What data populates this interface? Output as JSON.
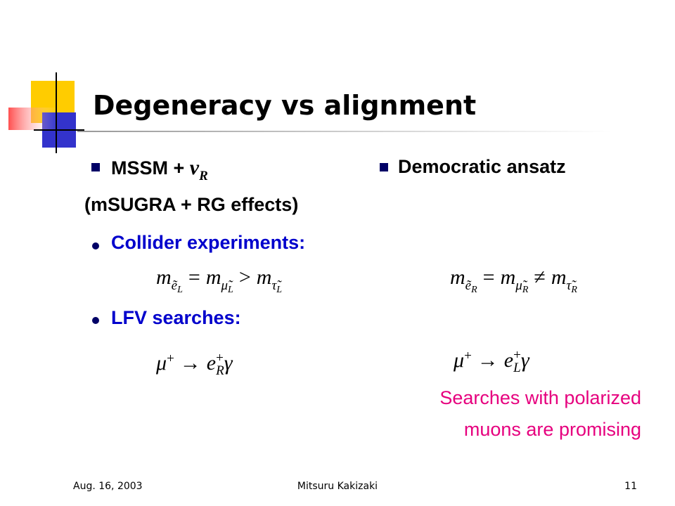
{
  "title": "Degeneracy vs alignment",
  "left": {
    "bullet": {
      "text": "MSSM +",
      "math": [
        {
          "base": "ν",
          "sub": "R"
        }
      ]
    },
    "note": "(mSUGRA + RG effects)",
    "item1": "Collider experiments:",
    "formula1": [
      {
        "base": "m",
        "sub": "ẽ",
        "subsub": "L"
      },
      {
        "op": "="
      },
      {
        "base": "m",
        "sub": "μ̃",
        "subsub": "L"
      },
      {
        "op": ">"
      },
      {
        "base": "m",
        "sub": "τ̃",
        "subsub": "L"
      }
    ],
    "item2": "LFV searches:",
    "formula2": [
      {
        "base": "μ",
        "sup": "+"
      },
      {
        "op": "→"
      },
      {
        "base": "e",
        "sup": "+",
        "sub": "R"
      },
      {
        "base": "γ"
      }
    ]
  },
  "right": {
    "bullet": "Democratic ansatz",
    "formula1": [
      {
        "base": "m",
        "sub": "ẽ",
        "subsub": "R"
      },
      {
        "op": "="
      },
      {
        "base": "m",
        "sub": "μ̃",
        "subsub": "R"
      },
      {
        "op": "≠"
      },
      {
        "base": "m",
        "sub": "τ̃",
        "subsub": "R"
      }
    ],
    "formula2": [
      {
        "base": "μ",
        "sup": "+"
      },
      {
        "op": "→"
      },
      {
        "base": "e",
        "sup": "+",
        "sub": "L"
      },
      {
        "base": "γ"
      }
    ],
    "highlight": [
      "Searches with polarized",
      "muons are promising"
    ]
  },
  "footer": {
    "date": "Aug. 16, 2003",
    "author": "Mitsuru Kakizaki",
    "page": "11"
  }
}
